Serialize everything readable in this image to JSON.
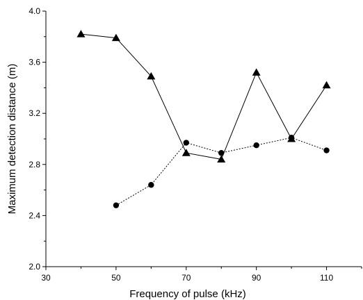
{
  "chart_data": {
    "type": "line",
    "title": "",
    "xlabel": "Frequency of pulse (kHz)",
    "ylabel": "Maximum detection distance (m)",
    "xlim": [
      30,
      120
    ],
    "ylim": [
      2.0,
      4.0
    ],
    "xticks": [
      30,
      50,
      70,
      90,
      110
    ],
    "xtick_labels": [
      "30",
      "50",
      "70",
      "90",
      "110"
    ],
    "yticks": [
      2.0,
      2.4,
      2.8,
      3.2,
      3.6,
      4.0
    ],
    "ytick_labels": [
      "2.0",
      "2.4",
      "2.8",
      "3.2",
      "3.6",
      "4.0"
    ],
    "grid": false,
    "series": [
      {
        "marker": "triangle",
        "line_style": "solid",
        "color": "#000000",
        "x": [
          40,
          50,
          60,
          70,
          80,
          90,
          100,
          110
        ],
        "y": [
          3.82,
          3.79,
          3.49,
          2.89,
          2.84,
          3.52,
          3.0,
          3.42
        ]
      },
      {
        "marker": "circle",
        "line_style": "dotted",
        "color": "#000000",
        "x": [
          50,
          60,
          70,
          80,
          90,
          100,
          110
        ],
        "y": [
          2.48,
          2.64,
          2.97,
          2.89,
          2.95,
          3.01,
          2.91
        ]
      }
    ]
  }
}
